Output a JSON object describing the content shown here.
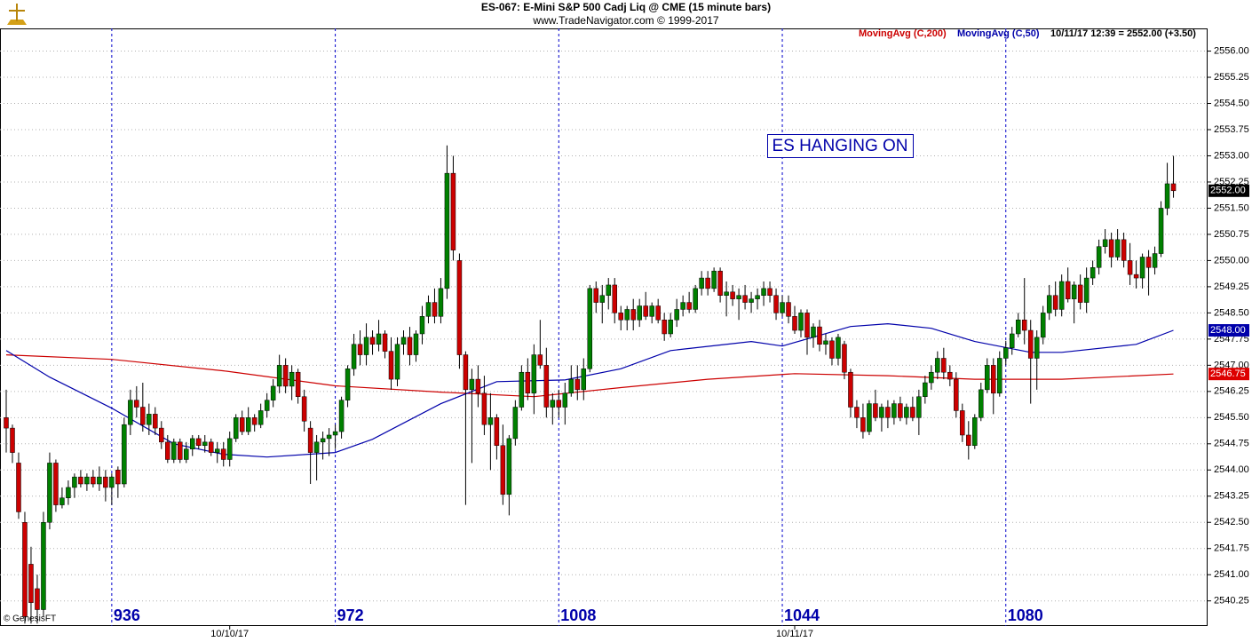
{
  "chart_data": {
    "type": "candlestick",
    "title": "ES-067:  E-Mini S&P 500 Cadj Liq @ CME  (15 minute bars)",
    "subtitle": "www.TradeNavigator.com © 1999-2017",
    "annotation": "ES HANGING ON",
    "last_info": "10/11/17 12:39 = 2552.00 (+3.50)",
    "footer": "© GenesisFT",
    "up_color": "#008000",
    "down_color": "#cc0000",
    "grid": true,
    "xlim": [
      918,
      1112.5
    ],
    "ylim": [
      2539.53,
      2556.65
    ],
    "xticks": [
      936,
      972,
      1008,
      1044,
      1080
    ],
    "date_labels": [
      {
        "value": 955,
        "label": "10/10/17"
      },
      {
        "value": 1046,
        "label": "10/11/17"
      }
    ],
    "yticks": [
      2540.25,
      {
        "value": 2541,
        "label": "2541.00"
      },
      2541.75,
      {
        "value": 2542.5,
        "label": "2542.50"
      },
      2543.25,
      {
        "value": 2544,
        "label": "2544.00"
      },
      2544.75,
      {
        "value": 2545.5,
        "label": "2545.50"
      },
      2546.25,
      {
        "value": 2547,
        "label": "2547.00"
      },
      2547.75,
      {
        "value": 2548.5,
        "label": "2548.50"
      },
      2549.25,
      {
        "value": 2550,
        "label": "2550.00"
      },
      2550.75,
      {
        "value": 2551.5,
        "label": "2551.50"
      },
      2552.25,
      {
        "value": 2553,
        "label": "2553.00"
      },
      2553.75,
      {
        "value": 2554.5,
        "label": "2554.50"
      },
      2555.25,
      {
        "value": 2556,
        "label": "2556.00"
      }
    ],
    "price_tags": [
      {
        "value": 2552,
        "label": "2552.00",
        "color": "#000000"
      },
      {
        "value": 2548,
        "label": "2548.00",
        "color": "#0000aa"
      },
      {
        "value": 2546.75,
        "label": "2546.75",
        "color": "#dd0000"
      }
    ],
    "x": [
      919,
      920,
      921,
      922,
      923,
      924,
      925,
      926,
      927,
      928,
      929,
      930,
      931,
      932,
      933,
      934,
      935,
      936,
      937,
      938,
      939,
      940,
      941,
      942,
      943,
      944,
      945,
      946,
      947,
      948,
      949,
      950,
      951,
      952,
      953,
      954,
      955,
      956,
      957,
      958,
      959,
      960,
      961,
      962,
      963,
      964,
      965,
      966,
      967,
      968,
      969,
      970,
      971,
      972,
      973,
      974,
      975,
      976,
      977,
      978,
      979,
      980,
      981,
      982,
      983,
      984,
      985,
      986,
      987,
      988,
      989,
      990,
      991,
      992,
      993,
      994,
      995,
      996,
      997,
      998,
      999,
      1000,
      1001,
      1002,
      1003,
      1004,
      1005,
      1006,
      1007,
      1008,
      1009,
      1010,
      1011,
      1012,
      1013,
      1014,
      1015,
      1016,
      1017,
      1018,
      1019,
      1020,
      1021,
      1022,
      1023,
      1024,
      1025,
      1026,
      1027,
      1028,
      1029,
      1030,
      1031,
      1032,
      1033,
      1034,
      1035,
      1036,
      1037,
      1038,
      1039,
      1040,
      1041,
      1042,
      1043,
      1044,
      1045,
      1046,
      1047,
      1048,
      1049,
      1050,
      1051,
      1052,
      1053,
      1054,
      1055,
      1056,
      1057,
      1058,
      1059,
      1060,
      1061,
      1062,
      1063,
      1064,
      1065,
      1066,
      1067,
      1068,
      1069,
      1070,
      1071,
      1072,
      1073,
      1074,
      1075,
      1076,
      1077,
      1078,
      1079,
      1080,
      1081,
      1082,
      1083,
      1084,
      1085,
      1086,
      1087,
      1088,
      1089,
      1090,
      1091,
      1092,
      1093,
      1094,
      1095,
      1096,
      1097,
      1098,
      1099,
      1100,
      1101,
      1102,
      1103,
      1104,
      1105,
      1106,
      1107
    ],
    "open": [
      2545.5,
      2545.2,
      2544.2,
      2542.5,
      2541.3,
      2540.6,
      2540.0,
      2542.5,
      2544.2,
      2543.0,
      2543.2,
      2543.5,
      2543.8,
      2543.6,
      2543.8,
      2543.6,
      2543.8,
      2543.5,
      2544.0,
      2543.6,
      2545.3,
      2546.0,
      2545.8,
      2545.3,
      2545.6,
      2545.2,
      2544.8,
      2544.3,
      2544.8,
      2544.3,
      2544.6,
      2544.9,
      2544.7,
      2544.8,
      2544.5,
      2544.6,
      2544.3,
      2544.9,
      2545.5,
      2545.1,
      2545.5,
      2545.3,
      2545.7,
      2546.0,
      2546.4,
      2547.0,
      2546.4,
      2546.8,
      2546.1,
      2545.2,
      2544.5,
      2544.8,
      2544.9,
      2545.0,
      2545.1,
      2546.0,
      2546.9,
      2547.6,
      2547.3,
      2547.8,
      2547.6,
      2547.9,
      2547.4,
      2546.6,
      2547.6,
      2547.8,
      2547.3,
      2547.9,
      2548.4,
      2548.8,
      2548.4,
      2549.2,
      2552.5,
      2550.0,
      2547.3,
      2546.3,
      2546.6,
      2546.2,
      2545.3,
      2545.5,
      2544.7,
      2543.3,
      2544.9,
      2545.8,
      2546.8,
      2546.2,
      2547.3,
      2547.0,
      2545.8,
      2546.0,
      2545.8,
      2546.2,
      2546.6,
      2546.3,
      2546.9,
      2549.2,
      2548.8,
      2549.0,
      2549.3,
      2548.5,
      2548.3,
      2548.6,
      2548.3,
      2548.7,
      2548.4,
      2548.7,
      2548.3,
      2547.9,
      2548.3,
      2548.6,
      2548.8,
      2548.6,
      2549.2,
      2549.5,
      2549.2,
      2549.7,
      2549.0,
      2549.1,
      2548.9,
      2549.0,
      2548.8,
      2548.9,
      2549.0,
      2549.2,
      2549.0,
      2548.5,
      2548.8,
      2548.4,
      2548.0,
      2548.5,
      2547.8,
      2548.1,
      2547.6,
      2547.7,
      2547.2,
      2547.6,
      2546.8,
      2545.8,
      2545.5,
      2545.1,
      2545.9,
      2545.5,
      2545.8,
      2545.5,
      2545.9,
      2545.5,
      2545.8,
      2545.5,
      2546.1,
      2546.5,
      2546.8,
      2547.2,
      2546.8,
      2546.6,
      2545.7,
      2545.0,
      2544.7,
      2545.5,
      2546.3,
      2547.0,
      2546.2,
      2547.2,
      2547.5,
      2547.9,
      2548.3,
      2548.0,
      2547.2,
      2547.8,
      2548.5,
      2549.0,
      2548.6,
      2549.4,
      2548.9,
      2549.3,
      2548.8,
      2549.5,
      2549.8,
      2550.4,
      2550.6,
      2550.1,
      2550.6,
      2550.0,
      2549.6,
      2549.5,
      2550.1,
      2549.8,
      2550.2,
      2551.5,
      2552.2
    ],
    "high": [
      2546.3,
      2545.3,
      2544.5,
      2542.8,
      2541.8,
      2541.0,
      2542.8,
      2544.5,
      2544.3,
      2543.5,
      2543.7,
      2543.9,
      2544.0,
      2543.9,
      2544.0,
      2544.1,
      2544.0,
      2543.9,
      2544.1,
      2545.5,
      2546.3,
      2546.4,
      2546.5,
      2545.9,
      2545.8,
      2545.4,
      2545.0,
      2544.9,
      2544.9,
      2544.8,
      2545.0,
      2545.0,
      2545.0,
      2544.9,
      2544.8,
      2544.8,
      2545.1,
      2545.6,
      2545.7,
      2545.8,
      2545.6,
      2545.9,
      2546.2,
      2546.6,
      2547.3,
      2547.2,
      2547.0,
      2546.9,
      2546.3,
      2545.4,
      2545.0,
      2545.1,
      2545.2,
      2545.3,
      2546.1,
      2547.0,
      2547.9,
      2548.0,
      2548.2,
      2548.0,
      2548.3,
      2548.0,
      2547.8,
      2547.8,
      2548.0,
      2548.1,
      2548.0,
      2548.7,
      2549.0,
      2549.2,
      2549.5,
      2553.3,
      2553.0,
      2550.2,
      2547.4,
      2546.9,
      2547.0,
      2546.7,
      2546.2,
      2545.6,
      2545.3,
      2545.0,
      2546.0,
      2547.0,
      2547.2,
      2547.6,
      2548.3,
      2547.5,
      2546.2,
      2546.3,
      2546.5,
      2547.0,
      2547.0,
      2547.2,
      2549.3,
      2549.4,
      2549.3,
      2549.5,
      2549.5,
      2548.7,
      2548.7,
      2548.9,
      2548.9,
      2549.1,
      2548.8,
      2548.9,
      2548.5,
      2548.5,
      2548.9,
      2549.0,
      2549.1,
      2549.3,
      2549.7,
      2549.7,
      2549.8,
      2549.8,
      2549.4,
      2549.3,
      2549.2,
      2549.3,
      2549.1,
      2549.2,
      2549.4,
      2549.4,
      2549.2,
      2549.0,
      2549.0,
      2548.7,
      2548.6,
      2548.6,
      2548.2,
      2548.3,
      2547.9,
      2547.8,
      2547.9,
      2547.7,
      2546.9,
      2546.0,
      2545.9,
      2546.0,
      2546.3,
      2545.9,
      2546.0,
      2546.0,
      2546.1,
      2545.9,
      2546.1,
      2546.3,
      2546.7,
      2547.0,
      2547.4,
      2547.5,
      2547.0,
      2546.8,
      2545.9,
      2545.4,
      2545.6,
      2546.5,
      2547.2,
      2547.2,
      2547.4,
      2547.7,
      2548.1,
      2548.5,
      2549.5,
      2548.3,
      2548.0,
      2548.7,
      2549.3,
      2549.4,
      2549.6,
      2549.8,
      2549.4,
      2549.6,
      2549.8,
      2550.0,
      2550.6,
      2550.9,
      2550.8,
      2550.9,
      2550.8,
      2550.5,
      2550.0,
      2550.2,
      2550.3,
      2550.4,
      2551.7,
      2552.8,
      2553.0
    ],
    "low": [
      2544.5,
      2544.2,
      2542.6,
      2539.6,
      2539.6,
      2539.6,
      2539.8,
      2542.3,
      2542.8,
      2542.9,
      2543.0,
      2543.2,
      2543.5,
      2543.4,
      2543.5,
      2543.4,
      2543.1,
      2543.0,
      2543.2,
      2543.5,
      2545.0,
      2545.5,
      2545.1,
      2545.0,
      2545.0,
      2544.6,
      2544.2,
      2544.2,
      2544.2,
      2544.2,
      2544.4,
      2544.6,
      2544.5,
      2544.4,
      2544.2,
      2544.1,
      2544.1,
      2544.8,
      2545.0,
      2545.0,
      2545.1,
      2545.2,
      2545.5,
      2545.8,
      2546.2,
      2546.2,
      2546.0,
      2545.9,
      2545.1,
      2543.6,
      2543.7,
      2544.3,
      2544.4,
      2544.6,
      2544.9,
      2545.8,
      2546.7,
      2547.0,
      2547.0,
      2547.3,
      2547.4,
      2547.2,
      2546.3,
      2546.4,
      2547.3,
      2547.0,
      2547.1,
      2547.6,
      2548.2,
      2548.2,
      2548.2,
      2548.9,
      2550.0,
      2546.9,
      2543.0,
      2544.2,
      2545.8,
      2545.0,
      2544.0,
      2544.3,
      2543.0,
      2542.7,
      2544.7,
      2545.7,
      2546.0,
      2545.6,
      2546.9,
      2545.5,
      2545.3,
      2545.5,
      2545.3,
      2546.1,
      2546.0,
      2546.0,
      2546.8,
      2548.5,
      2548.2,
      2548.6,
      2548.2,
      2548.0,
      2548.0,
      2548.0,
      2548.1,
      2548.3,
      2548.2,
      2548.2,
      2547.7,
      2547.8,
      2548.1,
      2548.4,
      2548.5,
      2548.5,
      2549.0,
      2549.0,
      2549.1,
      2548.8,
      2548.4,
      2548.7,
      2548.3,
      2548.6,
      2548.5,
      2548.6,
      2548.7,
      2548.8,
      2548.3,
      2548.4,
      2548.2,
      2547.9,
      2547.8,
      2547.3,
      2547.5,
      2547.4,
      2547.3,
      2547.0,
      2547.0,
      2546.6,
      2545.5,
      2545.2,
      2544.9,
      2545.0,
      2545.4,
      2545.1,
      2545.2,
      2545.3,
      2545.4,
      2545.3,
      2545.4,
      2545.0,
      2545.9,
      2546.3,
      2546.6,
      2546.6,
      2546.4,
      2545.5,
      2544.8,
      2544.3,
      2544.6,
      2545.4,
      2546.2,
      2545.6,
      2546.1,
      2547.0,
      2547.3,
      2547.8,
      2547.6,
      2545.9,
      2546.3,
      2547.6,
      2548.3,
      2548.4,
      2548.4,
      2548.8,
      2548.2,
      2548.6,
      2548.5,
      2549.3,
      2549.6,
      2550.2,
      2549.8,
      2550.0,
      2549.8,
      2549.3,
      2549.2,
      2549.2,
      2549.0,
      2549.6,
      2550.1,
      2551.3,
      2551.8
    ],
    "close": [
      2545.2,
      2544.5,
      2542.8,
      2539.8,
      2540.2,
      2540.0,
      2542.5,
      2544.2,
      2543.0,
      2543.2,
      2543.5,
      2543.8,
      2543.6,
      2543.8,
      2543.6,
      2543.8,
      2543.5,
      2543.8,
      2543.6,
      2545.3,
      2546.0,
      2545.8,
      2545.3,
      2545.6,
      2545.2,
      2544.8,
      2544.3,
      2544.8,
      2544.3,
      2544.6,
      2544.9,
      2544.7,
      2544.8,
      2544.5,
      2544.6,
      2544.3,
      2544.9,
      2545.5,
      2545.1,
      2545.5,
      2545.3,
      2545.7,
      2546.0,
      2546.4,
      2547.0,
      2546.4,
      2546.8,
      2546.1,
      2545.4,
      2544.5,
      2544.8,
      2544.9,
      2545.0,
      2545.1,
      2546.0,
      2546.9,
      2547.6,
      2547.3,
      2547.8,
      2547.6,
      2547.9,
      2547.4,
      2546.6,
      2547.6,
      2547.8,
      2547.3,
      2547.9,
      2548.4,
      2548.8,
      2548.4,
      2549.2,
      2552.5,
      2550.3,
      2547.3,
      2546.3,
      2546.6,
      2546.2,
      2545.3,
      2545.5,
      2544.7,
      2543.3,
      2544.9,
      2545.8,
      2546.8,
      2546.2,
      2547.3,
      2547.0,
      2545.8,
      2546.0,
      2545.8,
      2546.2,
      2546.6,
      2546.3,
      2546.9,
      2549.2,
      2548.8,
      2549.0,
      2549.3,
      2548.5,
      2548.3,
      2548.6,
      2548.3,
      2548.7,
      2548.4,
      2548.7,
      2548.3,
      2547.9,
      2548.3,
      2548.6,
      2548.8,
      2548.6,
      2549.2,
      2549.5,
      2549.2,
      2549.7,
      2549.0,
      2549.1,
      2548.9,
      2549.0,
      2548.8,
      2548.9,
      2549.0,
      2549.2,
      2549.0,
      2548.5,
      2548.8,
      2548.4,
      2548.0,
      2548.5,
      2547.8,
      2548.1,
      2547.6,
      2547.7,
      2547.2,
      2547.8,
      2546.8,
      2545.8,
      2545.5,
      2545.1,
      2545.9,
      2545.5,
      2545.8,
      2545.5,
      2545.9,
      2545.5,
      2545.8,
      2545.5,
      2546.1,
      2546.5,
      2546.8,
      2547.2,
      2546.8,
      2546.6,
      2545.7,
      2545.0,
      2544.7,
      2545.5,
      2546.3,
      2547.0,
      2546.2,
      2547.2,
      2547.5,
      2547.9,
      2548.3,
      2548.0,
      2547.2,
      2547.8,
      2548.5,
      2549.0,
      2548.6,
      2549.4,
      2548.9,
      2549.3,
      2548.8,
      2549.5,
      2549.8,
      2550.4,
      2550.6,
      2550.1,
      2550.6,
      2550.0,
      2549.6,
      2549.5,
      2550.1,
      2549.8,
      2550.2,
      2551.5,
      2552.2,
      2552.0
    ],
    "lines": [
      {
        "name": "MovingAvg (C,200)",
        "color": "#cc0000",
        "x": [
          919,
          936,
          954,
          972,
          989,
          1004,
          1018,
          1032,
          1046,
          1061,
          1075,
          1089,
          1107
        ],
        "values": [
          2547.3,
          2547.17,
          2546.84,
          2546.41,
          2546.23,
          2546.1,
          2546.36,
          2546.6,
          2546.76,
          2546.7,
          2546.6,
          2546.6,
          2546.75
        ]
      },
      {
        "name": "MovingAvg (C,50)",
        "color": "#0000aa",
        "x": [
          919,
          926,
          936,
          946,
          954,
          961,
          972,
          978,
          989,
          998,
          1009,
          1018,
          1026,
          1039,
          1044,
          1055,
          1061,
          1068,
          1075,
          1084,
          1089,
          1101,
          1107
        ],
        "values": [
          2547.42,
          2546.66,
          2545.77,
          2544.75,
          2544.45,
          2544.37,
          2544.5,
          2544.88,
          2545.9,
          2546.53,
          2546.58,
          2546.9,
          2547.42,
          2547.68,
          2547.55,
          2548.11,
          2548.19,
          2548.06,
          2547.68,
          2547.37,
          2547.37,
          2547.6,
          2548.0
        ]
      }
    ]
  }
}
